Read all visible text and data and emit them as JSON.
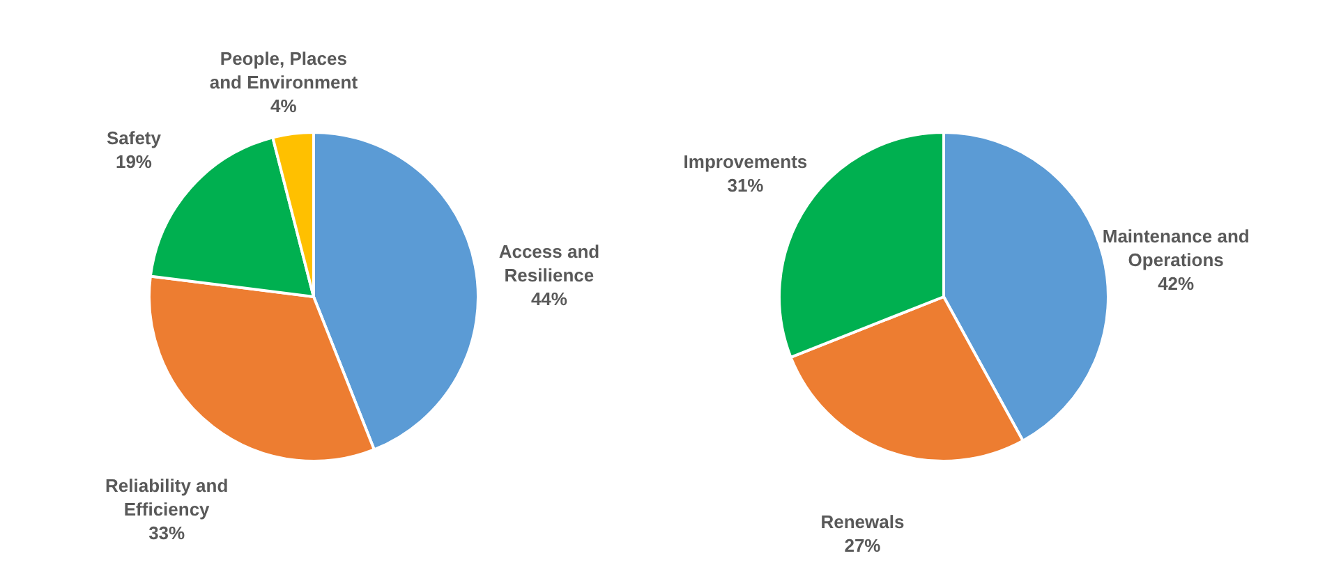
{
  "chart_data": [
    {
      "type": "pie",
      "categories": [
        "Access and Resilience",
        "Reliability and Efficiency",
        "Safety",
        "People, Places and Environment"
      ],
      "values": [
        44,
        33,
        19,
        4
      ],
      "value_labels": [
        "44%",
        "33%",
        "19%",
        "4%"
      ],
      "colors": [
        "#5b9bd5",
        "#ed7d31",
        "#00b050",
        "#ffc000"
      ],
      "legend": false
    },
    {
      "type": "pie",
      "categories": [
        "Maintenance and Operations",
        "Renewals",
        "Improvements"
      ],
      "values": [
        42,
        27,
        31
      ],
      "value_labels": [
        "42%",
        "27%",
        "31%"
      ],
      "colors": [
        "#5b9bd5",
        "#ed7d31",
        "#00b050"
      ],
      "legend": false
    }
  ]
}
